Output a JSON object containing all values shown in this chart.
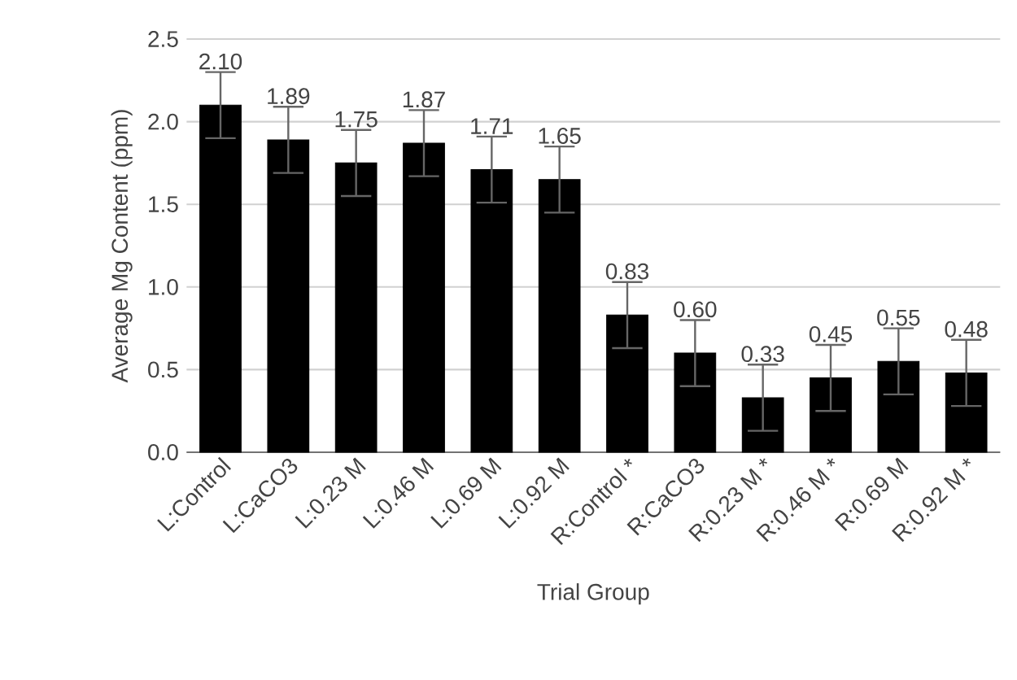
{
  "chart_data": {
    "type": "bar",
    "xlabel": "Trial Group",
    "ylabel": "Average Mg Content (ppm)",
    "categories": [
      "L:Control",
      "L:CaCO3",
      "L:0.23 M",
      "L:0.46 M",
      "L:0.69 M",
      "L:0.92 M",
      "R:Control *",
      "R:CaCO3",
      "R:0.23 M *",
      "R:0.46 M *",
      "R:0.69 M",
      "R:0.92 M *"
    ],
    "values": [
      2.1,
      1.89,
      1.75,
      1.87,
      1.71,
      1.65,
      0.83,
      0.6,
      0.33,
      0.45,
      0.55,
      0.48
    ],
    "errors": [
      0.2,
      0.2,
      0.2,
      0.2,
      0.2,
      0.2,
      0.2,
      0.2,
      0.2,
      0.2,
      0.2,
      0.2
    ],
    "value_labels": [
      "2.10",
      "1.89",
      "1.75",
      "1.87",
      "1.71",
      "1.65",
      "0.83",
      "0.60",
      "0.33",
      "0.45",
      "0.55",
      "0.48"
    ],
    "color": "#000000",
    "ylim": [
      0,
      2.5
    ],
    "yticks": [
      {
        "value": 0,
        "label": "0.0"
      },
      {
        "value": 0.5,
        "label": "0.5"
      },
      {
        "value": 1,
        "label": "1.0"
      },
      {
        "value": 1.5,
        "label": "1.5"
      },
      {
        "value": 2,
        "label": "2.0"
      },
      {
        "value": 2.5,
        "label": "2.5"
      }
    ],
    "grid": "y"
  }
}
